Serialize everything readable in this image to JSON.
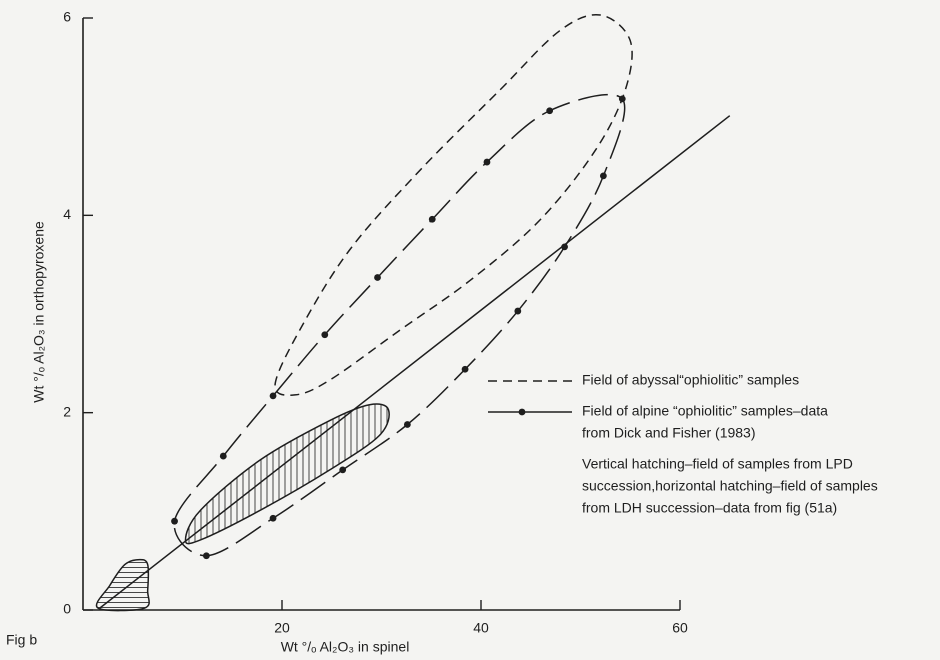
{
  "chart_data": {
    "type": "scatter",
    "xlabel": "Wt °/ₒ Al₂O₃ in spinel",
    "ylabel": "Wt °/ₒ Al₂O₃ in orthopyroxene",
    "fig_label": "Fig b",
    "xlim": [
      0,
      60
    ],
    "ylim": [
      0,
      6
    ],
    "xticks": [
      20,
      40,
      60
    ],
    "yticks": [
      0,
      2,
      4,
      6
    ],
    "color": "#1e1e1e",
    "series": [
      {
        "style": "dashed",
        "closed": true,
        "x": [
          19.3,
          21.8,
          26.8,
          33.9,
          41.9,
          47.9,
          52.0,
          55.0,
          54.5,
          51.5,
          45.9,
          38.9,
          31.9,
          24.8,
          21.3
        ],
        "y": [
          2.28,
          2.84,
          3.65,
          4.46,
          5.27,
          5.87,
          6.03,
          5.77,
          5.27,
          4.66,
          3.95,
          3.34,
          2.84,
          2.33,
          2.18
        ]
      },
      {
        "style": "dash-dot",
        "closed": true,
        "markers": true,
        "x": [
          19.1,
          24.3,
          29.6,
          35.1,
          40.6,
          46.9,
          54.2,
          52.3,
          48.4,
          43.7,
          38.4,
          32.6,
          26.1,
          19.1,
          12.4,
          9.2,
          14.1
        ],
        "y": [
          2.17,
          2.79,
          3.37,
          3.96,
          4.54,
          5.06,
          5.18,
          4.4,
          3.68,
          3.03,
          2.44,
          1.88,
          1.42,
          0.93,
          0.55,
          0.9,
          1.56
        ]
      },
      {
        "style": "solid",
        "closed": true,
        "hatch": "vertical",
        "x": [
          10.3,
          11.8,
          17.8,
          24.8,
          28.8,
          30.7,
          29.8,
          24.8,
          17.8,
          11.8
        ],
        "y": [
          0.71,
          1.01,
          1.52,
          1.92,
          2.08,
          2.03,
          1.77,
          1.42,
          1.01,
          0.71
        ]
      },
      {
        "style": "solid",
        "closed": true,
        "hatch": "horizontal",
        "x": [
          1.5,
          2.7,
          4.2,
          5.7,
          6.5,
          6.5,
          6.2
        ],
        "y": [
          0.02,
          0.25,
          0.46,
          0.51,
          0.46,
          0.2,
          0.02
        ]
      },
      {
        "style": "solid",
        "x": [
          1.7,
          65.0
        ],
        "y": [
          0.02,
          5.01
        ]
      }
    ],
    "legend": [
      {
        "style": "dashed",
        "lines": [
          "Field of abyssal“ophiolitic” samples"
        ]
      },
      {
        "style": "dash-dot",
        "lines": [
          "Field of alpine “ophiolitic” samples–data",
          "from Dick and Fisher (1983)"
        ]
      },
      {
        "lines": [
          "Vertical hatching–field of samples from LPD",
          "succession,horizontal hatching–field of samples",
          "from LDH succession–data from fig (51a)"
        ]
      }
    ]
  }
}
